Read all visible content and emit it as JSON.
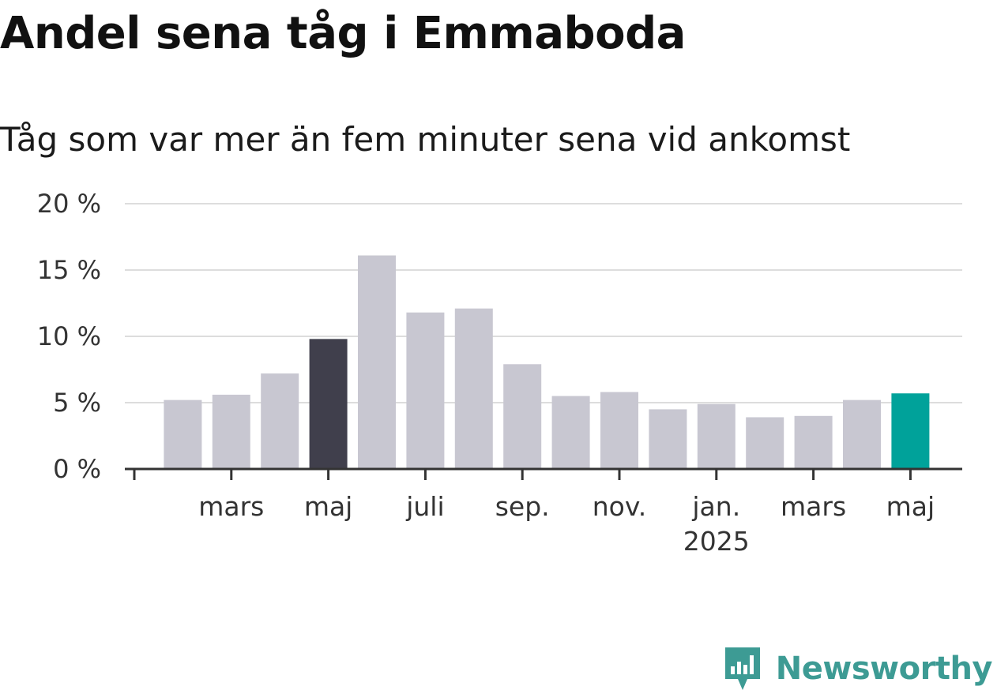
{
  "header": {
    "title": "Andel sena tåg i Emmaboda",
    "subtitle": "Tåg som var mer än fem minuter sena vid ankomst"
  },
  "chart_data": {
    "type": "bar",
    "title": "Andel sena tåg i Emmaboda",
    "subtitle": "Tåg som var mer än fem minuter sena vid ankomst",
    "xlabel": "",
    "ylabel": "",
    "ylim": [
      0,
      20
    ],
    "yticks": [
      0,
      5,
      10,
      15,
      20
    ],
    "ytick_labels": [
      "0 %",
      "5 %",
      "10 %",
      "15 %",
      "20 %"
    ],
    "categories": [
      "2024-01",
      "2024-02",
      "2024-03",
      "2024-04",
      "2024-05",
      "2024-06",
      "2024-07",
      "2024-08",
      "2024-09",
      "2024-10",
      "2024-11",
      "2024-12",
      "2025-01",
      "2025-02",
      "2025-03",
      "2025-04",
      "2025-05"
    ],
    "values": [
      null,
      5.2,
      5.6,
      7.2,
      9.8,
      16.1,
      11.8,
      12.1,
      7.9,
      5.5,
      5.8,
      4.5,
      4.9,
      3.9,
      4.0,
      5.2,
      5.7
    ],
    "highlight": {
      "2024-05": "dark",
      "2025-05": "accent"
    },
    "xtick_labels": [
      {
        "month": "2024-03",
        "label": "mars",
        "sublabel": ""
      },
      {
        "month": "2024-05",
        "label": "maj",
        "sublabel": ""
      },
      {
        "month": "2024-07",
        "label": "juli",
        "sublabel": ""
      },
      {
        "month": "2024-09",
        "label": "sep.",
        "sublabel": ""
      },
      {
        "month": "2024-11",
        "label": "nov.",
        "sublabel": ""
      },
      {
        "month": "2025-01",
        "label": "jan.",
        "sublabel": "2025"
      },
      {
        "month": "2025-03",
        "label": "mars",
        "sublabel": ""
      },
      {
        "month": "2025-05",
        "label": "maj",
        "sublabel": ""
      }
    ],
    "grid": true,
    "legend": "none"
  },
  "colors": {
    "bar": "#c8c7d1",
    "bar_dark": "#403f4c",
    "bar_accent": "#00a29a",
    "grid": "#dddddd",
    "axis": "#333333",
    "brand": "#3d9b94"
  },
  "brand": {
    "name": "Newsworthy",
    "icon": "newsworthy-logo-icon"
  }
}
